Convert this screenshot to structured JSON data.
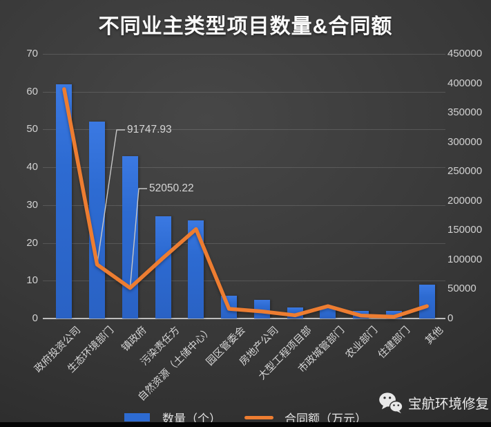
{
  "title": "不同业主类型项目数量&合同额",
  "legend": {
    "bar_label": "数量（个）",
    "line_label": "合同额（万元）"
  },
  "watermark": {
    "brand": "宝航环境修复",
    "icon": "wechat-icon"
  },
  "chart_data": {
    "type": "bar+line",
    "title": "不同业主类型项目数量&合同额",
    "categories": [
      "政府投资公司",
      "生态环境部门",
      "镇政府",
      "污染责任方",
      "自然资源（土储中心）",
      "园区管委会",
      "房地产公司",
      "大型工程项目部",
      "市政城管部门",
      "农业部门",
      "住建部门",
      "其他"
    ],
    "series": [
      {
        "name": "数量（个）",
        "chart": "bar",
        "axis": "left",
        "color": "#2D6BD2",
        "values": [
          62,
          52,
          43,
          27,
          26,
          6,
          5,
          3,
          3,
          2,
          2,
          9
        ]
      },
      {
        "name": "合同额（万元）",
        "chart": "line",
        "axis": "right",
        "color": "#ED7D31",
        "values": [
          390000,
          91747.93,
          52050.22,
          103000,
          152000,
          16500,
          12000,
          5500,
          21000,
          5000,
          3000,
          21000
        ]
      }
    ],
    "annotations": [
      {
        "series": "合同额（万元）",
        "category_index": 1,
        "text": "91747.93"
      },
      {
        "series": "合同额（万元）",
        "category_index": 2,
        "text": "52050.22"
      }
    ],
    "left_axis": {
      "range": [
        0,
        70
      ],
      "ticks": [
        70,
        60,
        50,
        40,
        30,
        20,
        10,
        0
      ]
    },
    "right_axis": {
      "range": [
        0,
        450000
      ],
      "ticks": [
        450000,
        400000,
        350000,
        300000,
        250000,
        200000,
        150000,
        100000,
        50000,
        0
      ]
    },
    "grid": true,
    "legend_position": "bottom",
    "background": "dark-gray-gradient"
  }
}
